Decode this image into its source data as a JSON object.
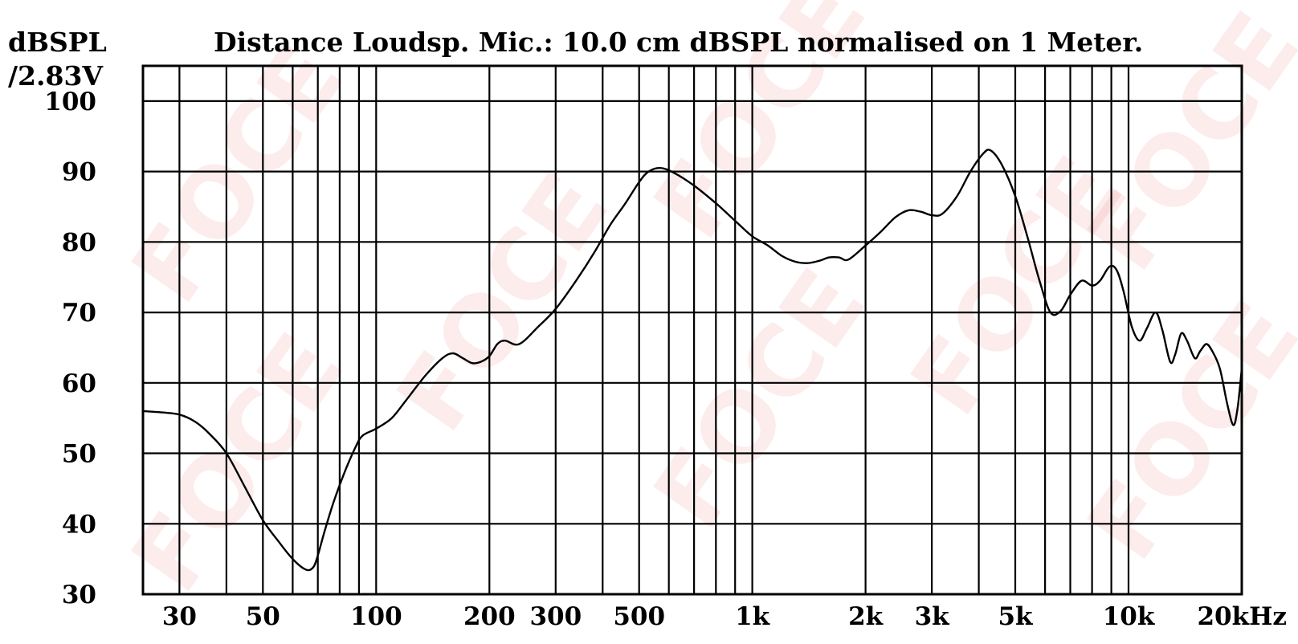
{
  "chart_data": {
    "type": "line",
    "title": "Distance Loudsp. Mic.: 10.0 cm dBSPL normalised on 1 Meter.",
    "ylabel_line1": "dBSPL",
    "ylabel_line2": "/2.83V",
    "xunit": "kHz",
    "xscale": "log",
    "xlim": [
      24,
      20000
    ],
    "ylim": [
      30,
      105
    ],
    "grid": true,
    "x_tick_labels": [
      {
        "value": 30,
        "label": "30"
      },
      {
        "value": 50,
        "label": "50"
      },
      {
        "value": 100,
        "label": "100"
      },
      {
        "value": 200,
        "label": "200"
      },
      {
        "value": 300,
        "label": "300"
      },
      {
        "value": 500,
        "label": "500"
      },
      {
        "value": 1000,
        "label": "1k"
      },
      {
        "value": 2000,
        "label": "2k"
      },
      {
        "value": 3000,
        "label": "3k"
      },
      {
        "value": 5000,
        "label": "5k"
      },
      {
        "value": 10000,
        "label": "10k"
      },
      {
        "value": 20000,
        "label": "20kHz"
      }
    ],
    "x_gridlines": [
      30,
      40,
      50,
      60,
      70,
      80,
      90,
      100,
      200,
      300,
      400,
      500,
      600,
      700,
      800,
      900,
      1000,
      2000,
      3000,
      4000,
      5000,
      6000,
      7000,
      8000,
      9000,
      10000,
      20000
    ],
    "y_ticks": [
      30,
      40,
      50,
      60,
      70,
      80,
      90,
      100
    ],
    "series": [
      {
        "x": [
          24,
          27,
          30,
          33,
          36,
          40,
          45,
          50,
          55,
          60,
          65,
          68,
          70,
          73,
          77,
          82,
          88,
          92,
          100,
          110,
          120,
          135,
          150,
          160,
          170,
          180,
          190,
          200,
          210,
          220,
          240,
          270,
          300,
          340,
          380,
          420,
          460,
          500,
          530,
          570,
          620,
          700,
          800,
          900,
          1000,
          1100,
          1200,
          1300,
          1400,
          1500,
          1600,
          1700,
          1800,
          2000,
          2200,
          2400,
          2600,
          2800,
          3000,
          3200,
          3500,
          3800,
          4100,
          4300,
          4600,
          5000,
          5400,
          5800,
          6200,
          6600,
          7000,
          7500,
          8000,
          8400,
          8900,
          9300,
          9700,
          10200,
          10700,
          11200,
          11800,
          12300,
          12900,
          13300,
          13800,
          14300,
          15000,
          15500,
          16100,
          16700,
          17500,
          18300,
          19000,
          19500,
          20000
        ],
        "y": [
          56,
          55.8,
          55.5,
          54.5,
          52.8,
          50,
          45,
          40.5,
          37.5,
          35,
          33.5,
          33.8,
          35.5,
          39,
          43,
          47,
          50.8,
          52.5,
          53.5,
          55,
          57.5,
          61,
          63.5,
          64.2,
          63.5,
          62.8,
          63,
          63.8,
          65.5,
          66,
          65.5,
          68,
          70.5,
          74.5,
          78.5,
          82.5,
          85.5,
          88.5,
          90,
          90.5,
          89.8,
          88,
          85.5,
          83,
          80.8,
          79.5,
          78,
          77.2,
          77,
          77.3,
          77.8,
          77.8,
          77.5,
          79.5,
          81.5,
          83.5,
          84.5,
          84.3,
          83.8,
          84,
          86.5,
          90,
          92.5,
          93,
          91,
          86.5,
          80.5,
          74.5,
          70,
          70.2,
          72.5,
          74.5,
          73.8,
          74.5,
          76.5,
          76,
          73,
          68,
          66,
          67.8,
          70,
          67.5,
          63,
          64,
          67,
          66,
          63.5,
          64.5,
          65.5,
          64.5,
          62,
          57,
          54,
          56.5,
          62
        ]
      }
    ]
  },
  "watermark": {
    "text": "FOCE",
    "color": "#e83a3a"
  }
}
